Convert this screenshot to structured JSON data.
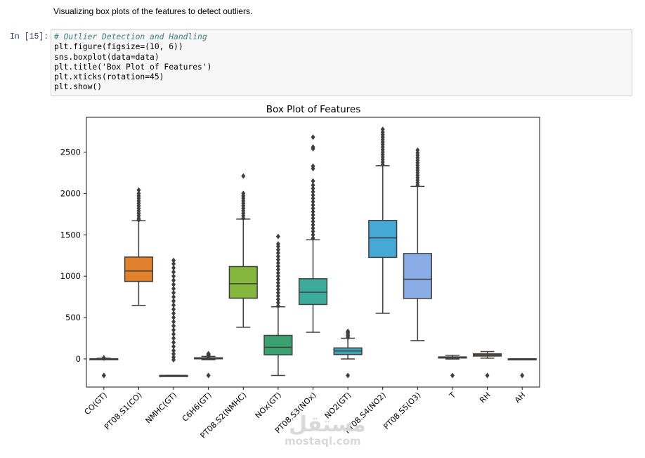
{
  "markdown_text": "Visualizing box plots of the features to detect outliers.",
  "cell": {
    "prompt": "In [15]:",
    "code_lines": [
      "# Outlier Detection and Handling",
      "plt.figure(figsize=(10, 6))",
      "sns.boxplot(data=data)",
      "plt.title('Box Plot of Features')",
      "plt.xticks(rotation=45)",
      "plt.show()"
    ]
  },
  "watermark": {
    "arabic": "مستقل",
    "latin": "mostaql.com"
  },
  "chart_data": {
    "type": "box",
    "title": "Box Plot of Features",
    "xlabel": "",
    "ylabel": "",
    "ylim": [
      -340,
      2920
    ],
    "yticks": [
      0,
      500,
      1000,
      1500,
      2000,
      2500
    ],
    "xtick_rotation": 45,
    "grid": false,
    "legend": "none",
    "series": [
      {
        "name": "CO(GT)",
        "color": "#3274a1",
        "whislo": -5,
        "q1": 1,
        "median": 1.5,
        "q3": 2.6,
        "whishi": 8,
        "outliers": [
          9,
          10,
          11,
          12,
          -200,
          -200
        ]
      },
      {
        "name": "PT08.S1(CO)",
        "color": "#e1812c",
        "whislo": 647,
        "q1": 937,
        "median": 1063,
        "q3": 1231,
        "whishi": 1670,
        "outliers": [
          1680,
          1700,
          1730,
          1760,
          1790,
          1820,
          1850,
          1880,
          1910,
          1940,
          1970,
          2000,
          2040
        ]
      },
      {
        "name": "NMHC(GT)",
        "color": "#3a923a",
        "whislo": -200,
        "q1": -200,
        "median": -200,
        "q3": -200,
        "whishi": -200,
        "outliers": [
          -10,
          20,
          60,
          100,
          150,
          200,
          250,
          300,
          350,
          400,
          450,
          500,
          550,
          600,
          650,
          700,
          750,
          800,
          850,
          900,
          950,
          1000,
          1050,
          1100,
          1150,
          1190
        ]
      },
      {
        "name": "C6H6(GT)",
        "color": "#c03d3e",
        "whislo": -10,
        "q1": 4,
        "median": 8,
        "q3": 14,
        "whishi": 30,
        "outliers": [
          34,
          40,
          48,
          56,
          63,
          -200
        ]
      },
      {
        "name": "PT08.S2(NMHC)",
        "color": "#84b63c",
        "whislo": 383,
        "q1": 734,
        "median": 909,
        "q3": 1116,
        "whishi": 1690,
        "outliers": [
          1700,
          1730,
          1760,
          1790,
          1820,
          1850,
          1880,
          1910,
          1940,
          1970,
          2000,
          2210
        ]
      },
      {
        "name": "NOx(GT)",
        "color": "#3aa26e",
        "whislo": -200,
        "q1": 50,
        "median": 141,
        "q3": 284,
        "whishi": 630,
        "outliers": [
          640,
          680,
          720,
          760,
          800,
          840,
          880,
          920,
          960,
          1000,
          1040,
          1080,
          1120,
          1160,
          1200,
          1240,
          1280,
          1320,
          1360,
          1390,
          1480
        ]
      },
      {
        "name": "PT08.S3(NOx)",
        "color": "#3cab9b",
        "whislo": 322,
        "q1": 658,
        "median": 806,
        "q3": 969,
        "whishi": 1440,
        "outliers": [
          1460,
          1500,
          1540,
          1580,
          1620,
          1660,
          1700,
          1740,
          1780,
          1820,
          1860,
          1900,
          1940,
          1980,
          2020,
          2060,
          2100,
          2150,
          2300,
          2330,
          2540,
          2560,
          2680
        ]
      },
      {
        "name": "NO2(GT)",
        "color": "#3aa6b7",
        "whislo": 0,
        "q1": 53,
        "median": 96,
        "q3": 133,
        "whishi": 250,
        "outliers": [
          260,
          280,
          300,
          320,
          333,
          -200
        ]
      },
      {
        "name": "PT08.S4(NO2)",
        "color": "#46a8d4",
        "whislo": 551,
        "q1": 1227,
        "median": 1463,
        "q3": 1674,
        "whishi": 2335,
        "outliers": [
          2350,
          2380,
          2410,
          2440,
          2470,
          2500,
          2530,
          2560,
          2590,
          2620,
          2650,
          2680,
          2710,
          2740,
          2775
        ]
      },
      {
        "name": "PT08.S5(O3)",
        "color": "#8aade7",
        "whislo": 221,
        "q1": 731,
        "median": 963,
        "q3": 1274,
        "whishi": 2085,
        "outliers": [
          2100,
          2130,
          2160,
          2190,
          2220,
          2250,
          2280,
          2310,
          2340,
          2370,
          2400,
          2430,
          2460,
          2490,
          2523
        ]
      },
      {
        "name": "T",
        "color": "#3274a1",
        "whislo": -2,
        "q1": 10.9,
        "median": 17.2,
        "q3": 24.1,
        "whishi": 44.6,
        "outliers": [
          -200
        ]
      },
      {
        "name": "RH",
        "color": "#e1812c",
        "whislo": 9.2,
        "q1": 34.1,
        "median": 48.6,
        "q3": 61.9,
        "whishi": 88.7,
        "outliers": [
          -200
        ]
      },
      {
        "name": "AH",
        "color": "#3a923a",
        "whislo": 0.2,
        "q1": 0.69,
        "median": 0.98,
        "q3": 1.3,
        "whishi": 2.23,
        "outliers": [
          -200
        ]
      }
    ]
  }
}
